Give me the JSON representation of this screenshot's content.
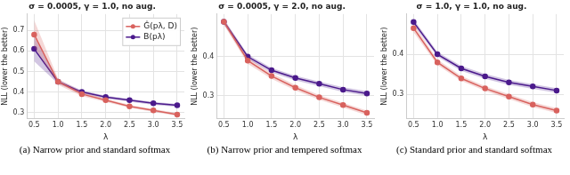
{
  "chart_data": [
    {
      "type": "line",
      "title": "σ = 0.0005, γ = 1.0, no aug.",
      "caption": "(a) Narrow prior and standard softmax",
      "x_label": "λ",
      "y_label": "NLL (lower the better)",
      "x": [
        0.5,
        1.0,
        1.5,
        2.0,
        2.5,
        3.0,
        3.5
      ],
      "xlim": [
        0.35,
        3.65
      ],
      "xticks": [
        0.5,
        {
          "value": 1.0,
          "label": "1.0"
        },
        1.5,
        {
          "value": 2.0,
          "label": "2.0"
        },
        2.5,
        {
          "value": 3.0,
          "label": "3.0"
        },
        3.5
      ],
      "ylim": [
        0.27,
        0.78
      ],
      "yticks": [
        0.3,
        0.4,
        0.5,
        0.6,
        0.7
      ],
      "grid": true,
      "legend": "upper right",
      "series": [
        {
          "name": "Ĝ(pλ, D)",
          "color": "#d9625e",
          "marker": "circle",
          "values": [
            0.68,
            0.45,
            0.39,
            0.36,
            0.33,
            0.31,
            0.29
          ],
          "lower": [
            0.62,
            0.435,
            0.38,
            0.352,
            0.323,
            0.303,
            0.283
          ],
          "upper": [
            0.75,
            0.465,
            0.4,
            0.368,
            0.337,
            0.317,
            0.297
          ]
        },
        {
          "name": "B(pλ)",
          "color": "#4b1a8c",
          "marker": "circle",
          "values": [
            0.61,
            0.45,
            0.4,
            0.375,
            0.36,
            0.345,
            0.335
          ],
          "lower": [
            0.55,
            0.44,
            0.392,
            0.368,
            0.353,
            0.338,
            0.328
          ],
          "upper": [
            0.67,
            0.46,
            0.408,
            0.382,
            0.367,
            0.352,
            0.342
          ]
        }
      ]
    },
    {
      "type": "line",
      "title": "σ = 0.0005, γ = 2.0, no aug.",
      "caption": "(b) Narrow prior and tempered softmax",
      "x_label": "λ",
      "y_label": "NLL (lower the better)",
      "x": [
        0.5,
        1.0,
        1.5,
        2.0,
        2.5,
        3.0,
        3.5
      ],
      "xlim": [
        0.35,
        3.65
      ],
      "xticks": [
        0.5,
        {
          "value": 1.0,
          "label": "1.0"
        },
        1.5,
        {
          "value": 2.0,
          "label": "2.0"
        },
        2.5,
        {
          "value": 3.0,
          "label": "3.0"
        },
        3.5
      ],
      "ylim": [
        0.24,
        0.51
      ],
      "yticks": [
        0.3,
        0.4
      ],
      "grid": true,
      "series": [
        {
          "name": "Ĝ(pλ, D)",
          "color": "#d9625e",
          "marker": "circle",
          "values": [
            0.49,
            0.39,
            0.35,
            0.32,
            0.295,
            0.275,
            0.255
          ],
          "lower": [
            0.482,
            0.382,
            0.343,
            0.313,
            0.289,
            0.269,
            0.249
          ],
          "upper": [
            0.498,
            0.398,
            0.357,
            0.327,
            0.301,
            0.281,
            0.261
          ]
        },
        {
          "name": "B(pλ)",
          "color": "#4b1a8c",
          "marker": "circle",
          "values": [
            0.49,
            0.4,
            0.365,
            0.345,
            0.33,
            0.315,
            0.305
          ],
          "lower": [
            0.483,
            0.394,
            0.359,
            0.339,
            0.324,
            0.309,
            0.299
          ],
          "upper": [
            0.497,
            0.406,
            0.371,
            0.351,
            0.336,
            0.321,
            0.311
          ]
        }
      ]
    },
    {
      "type": "line",
      "title": "σ = 1.0, γ = 1.0, no aug.",
      "caption": "(c) Standard prior and standard softmax",
      "x_label": "λ",
      "y_label": "NLL (lower the better)",
      "x": [
        0.5,
        1.0,
        1.5,
        2.0,
        2.5,
        3.0,
        3.5
      ],
      "xlim": [
        0.35,
        3.65
      ],
      "xticks": [
        0.5,
        {
          "value": 1.0,
          "label": "1.0"
        },
        1.5,
        {
          "value": 2.0,
          "label": "2.0"
        },
        2.5,
        {
          "value": 3.0,
          "label": "3.0"
        },
        3.5
      ],
      "ylim": [
        0.24,
        0.5
      ],
      "yticks": [
        0.3,
        0.4
      ],
      "grid": true,
      "series": [
        {
          "name": "Ĝ(pλ, D)",
          "color": "#d9625e",
          "marker": "circle",
          "values": [
            0.465,
            0.38,
            0.34,
            0.315,
            0.295,
            0.275,
            0.26
          ],
          "lower": [
            0.455,
            0.373,
            0.334,
            0.309,
            0.289,
            0.269,
            0.254
          ],
          "upper": [
            0.475,
            0.387,
            0.346,
            0.321,
            0.301,
            0.281,
            0.266
          ]
        },
        {
          "name": "B(pλ)",
          "color": "#4b1a8c",
          "marker": "circle",
          "values": [
            0.48,
            0.4,
            0.365,
            0.345,
            0.33,
            0.32,
            0.31
          ],
          "lower": [
            0.473,
            0.394,
            0.359,
            0.339,
            0.324,
            0.314,
            0.304
          ],
          "upper": [
            0.487,
            0.406,
            0.371,
            0.351,
            0.336,
            0.326,
            0.316
          ]
        }
      ]
    }
  ]
}
